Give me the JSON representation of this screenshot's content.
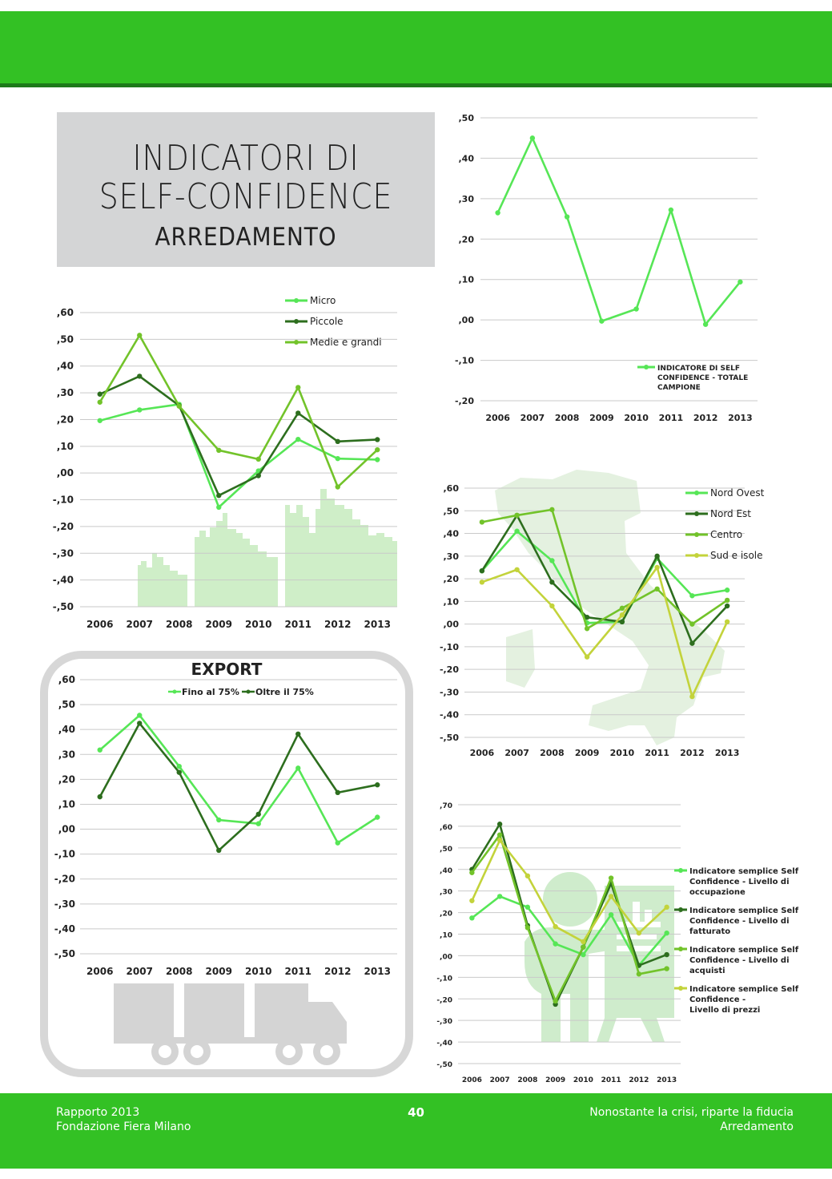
{
  "header": {
    "band_color": "#33c124"
  },
  "title": {
    "line1": "INDICATORI DI",
    "line2": "SELF-CONFIDENCE",
    "line3": "ARREDAMENTO"
  },
  "colors": {
    "bright_green": "#56e656",
    "dark_green": "#2d6e1e",
    "mid_green": "#72c32a",
    "yellow_green": "#c3d33b",
    "grid": "#c9c9c9",
    "pale": "#c8ebc0"
  },
  "chart_data": [
    {
      "id": "totale",
      "type": "line",
      "categories": [
        "2006",
        "2007",
        "2008",
        "2009",
        "2010",
        "2011",
        "2012",
        "2013"
      ],
      "ylim": [
        -0.2,
        0.5
      ],
      "yticks": [
        ",50",
        ",40",
        ",30",
        ",20",
        ",10",
        ",00",
        "-,10",
        "-,20"
      ],
      "series": [
        {
          "name": "INDICATORE DI SELF CONFIDENCE - TOTALE CAMPIONE",
          "legend_lines": [
            "INDICATORE DI SELF",
            "CONFIDENCE - TOTALE",
            "CAMPIONE"
          ],
          "color": "#56e656",
          "values": [
            0.265,
            0.45,
            0.255,
            -0.003,
            0.027,
            0.272,
            -0.011,
            0.094
          ]
        }
      ]
    },
    {
      "id": "dimensione",
      "type": "line",
      "categories": [
        "2006",
        "2007",
        "2008",
        "2009",
        "2010",
        "2011",
        "2012",
        "2013"
      ],
      "ylim": [
        -0.5,
        0.6
      ],
      "yticks": [
        ",60",
        ",50",
        ",40",
        ",30",
        ",20",
        ",10",
        ",00",
        "-,10",
        "-,20",
        "-,30",
        "-,40",
        "-,50"
      ],
      "series": [
        {
          "name": "Micro",
          "color": "#56e656",
          "values": [
            0.196,
            0.236,
            0.257,
            -0.128,
            0.008,
            0.126,
            0.054,
            0.05
          ]
        },
        {
          "name": "Piccole",
          "color": "#2d6e1e",
          "values": [
            0.295,
            0.362,
            0.252,
            -0.084,
            -0.01,
            0.224,
            0.118,
            0.125
          ]
        },
        {
          "name": "Medie e grandi",
          "color": "#72c32a",
          "values": [
            0.265,
            0.515,
            0.25,
            0.085,
            0.052,
            0.32,
            -0.052,
            0.087
          ]
        }
      ]
    },
    {
      "id": "export",
      "type": "line",
      "title": "EXPORT",
      "categories": [
        "2006",
        "2007",
        "2008",
        "2009",
        "2010",
        "2011",
        "2012",
        "2013"
      ],
      "ylim": [
        -0.5,
        0.6
      ],
      "yticks": [
        ",60",
        ",50",
        ",40",
        ",30",
        ",20",
        ",10",
        ",00",
        "-,10",
        "-,20",
        "-,30",
        "-,40",
        "-,50"
      ],
      "series": [
        {
          "name": "Fino al 75%",
          "color": "#56e656",
          "values": [
            0.318,
            0.457,
            0.252,
            0.037,
            0.022,
            0.245,
            -0.055,
            0.048
          ]
        },
        {
          "name": "Oltre il 75%",
          "color": "#2d6e1e",
          "values": [
            0.13,
            0.425,
            0.228,
            -0.085,
            0.06,
            0.382,
            0.147,
            0.178
          ]
        }
      ]
    },
    {
      "id": "area",
      "type": "line",
      "categories": [
        "2006",
        "2007",
        "2008",
        "2009",
        "2010",
        "2011",
        "2012",
        "2013"
      ],
      "ylim": [
        -0.5,
        0.6
      ],
      "yticks": [
        ",60",
        ",50",
        ",40",
        ",30",
        ",20",
        ",10",
        ",00",
        "-,10",
        "-,20",
        "-,30",
        "-,40",
        "-,50"
      ],
      "series": [
        {
          "name": "Nord Ovest",
          "color": "#56e656",
          "values": [
            0.235,
            0.41,
            0.28,
            0.005,
            0.01,
            0.29,
            0.125,
            0.15
          ]
        },
        {
          "name": "Nord Est",
          "color": "#2d6e1e",
          "values": [
            0.235,
            0.48,
            0.185,
            0.03,
            0.01,
            0.3,
            -0.085,
            0.08
          ]
        },
        {
          "name": "Centro",
          "color": "#72c32a",
          "values": [
            0.45,
            0.48,
            0.505,
            -0.02,
            0.07,
            0.155,
            0.0,
            0.105
          ]
        },
        {
          "name": "Sud e isole",
          "color": "#c3d33b",
          "values": [
            0.185,
            0.24,
            0.08,
            -0.145,
            0.04,
            0.25,
            -0.32,
            0.01
          ]
        }
      ]
    },
    {
      "id": "semplici",
      "type": "line",
      "categories": [
        "2006",
        "2007",
        "2008",
        "2009",
        "2010",
        "2011",
        "2012",
        "2013"
      ],
      "ylim": [
        -0.5,
        0.7
      ],
      "yticks": [
        ",70",
        ",60",
        ",50",
        ",40",
        ",30",
        ",20",
        ",10",
        ",00",
        "-,10",
        "-,20",
        "-,30",
        "-,40",
        "-,50"
      ],
      "series": [
        {
          "name": "Indicatore semplice Self Confidence - Livello di occupazione",
          "legend_lines": [
            "Indicatore semplice Self",
            "Confidence - Livello di",
            "occupazione"
          ],
          "color": "#56e656",
          "values": [
            0.175,
            0.275,
            0.225,
            0.055,
            0.005,
            0.19,
            -0.045,
            0.105
          ]
        },
        {
          "name": "Indicatore semplice Self Confidence - Livello di fatturato",
          "legend_lines": [
            "Indicatore semplice Self",
            "Confidence - Livello di",
            "fatturato"
          ],
          "color": "#2d6e1e",
          "values": [
            0.4,
            0.61,
            0.14,
            -0.225,
            0.04,
            0.335,
            -0.045,
            0.005
          ]
        },
        {
          "name": "Indicatore semplice Self Confidence - Livello di acquisti",
          "legend_lines": [
            "Indicatore semplice Self",
            "Confidence - Livello di",
            "acquisti"
          ],
          "color": "#72c32a",
          "values": [
            0.385,
            0.56,
            0.13,
            -0.21,
            0.04,
            0.36,
            -0.085,
            -0.06
          ]
        },
        {
          "name": "Indicatore semplice Self Confidence - Livello di prezzi",
          "legend_lines": [
            "Indicatore semplice Self",
            "Confidence -",
            "Livello di prezzi"
          ],
          "color": "#c3d33b",
          "values": [
            0.255,
            0.535,
            0.37,
            0.135,
            0.065,
            0.275,
            0.105,
            0.225
          ]
        }
      ]
    }
  ],
  "footer": {
    "left1": "Rapporto 2013",
    "left2": "Fondazione Fiera Milano",
    "page": "40",
    "right1": "Nonostante la crisi, riparte la fiducia",
    "right2": "Arredamento"
  }
}
